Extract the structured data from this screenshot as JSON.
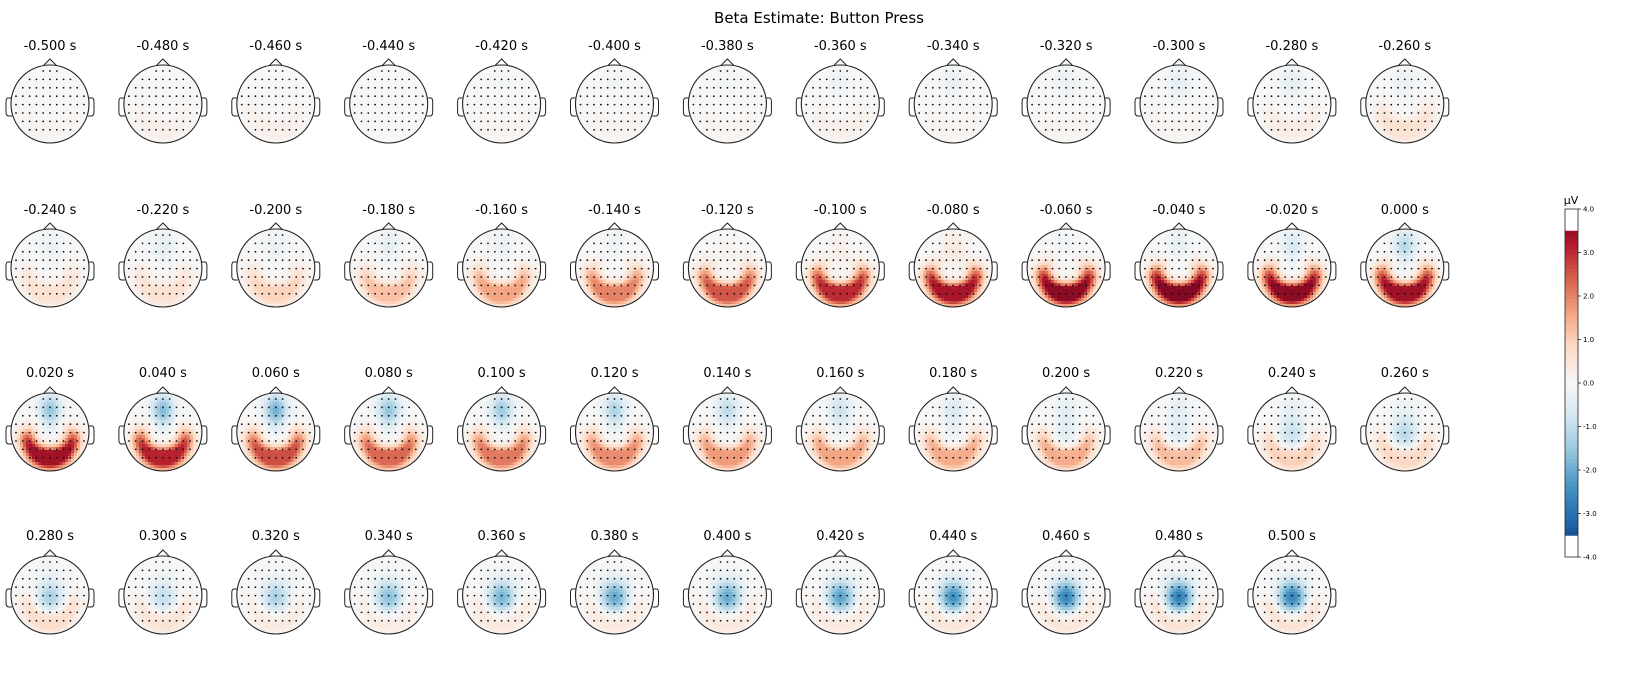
{
  "chart_data": {
    "type": "heatmap",
    "title": "Beta Estimate: Button Press",
    "time_unit": "s",
    "times": [
      "-0.500",
      "-0.480",
      "-0.460",
      "-0.440",
      "-0.420",
      "-0.400",
      "-0.380",
      "-0.360",
      "-0.340",
      "-0.320",
      "-0.300",
      "-0.280",
      "-0.260",
      "-0.240",
      "-0.220",
      "-0.200",
      "-0.180",
      "-0.160",
      "-0.140",
      "-0.120",
      "-0.100",
      "-0.080",
      "-0.060",
      "-0.040",
      "-0.020",
      "0.000",
      "0.020",
      "0.040",
      "0.060",
      "0.080",
      "0.100",
      "0.120",
      "0.140",
      "0.160",
      "0.180",
      "0.200",
      "0.220",
      "0.240",
      "0.260",
      "0.280",
      "0.300",
      "0.320",
      "0.340",
      "0.360",
      "0.380",
      "0.400",
      "0.420",
      "0.440",
      "0.460",
      "0.480",
      "0.500"
    ],
    "posterior_peak_uV": [
      0.1,
      0.2,
      0.2,
      0.0,
      0.1,
      0.1,
      0.1,
      0.2,
      0.1,
      0.1,
      0.1,
      0.3,
      0.6,
      0.6,
      0.6,
      0.9,
      1.2,
      1.6,
      2.0,
      2.5,
      3.0,
      3.3,
      3.6,
      3.7,
      3.6,
      3.4,
      3.4,
      3.1,
      2.6,
      2.3,
      2.1,
      1.9,
      1.7,
      1.6,
      1.5,
      1.5,
      1.3,
      1.0,
      0.9,
      0.8,
      0.6,
      0.4,
      0.4,
      0.5,
      0.5,
      0.5,
      0.5,
      0.6,
      0.6,
      0.7,
      0.7
    ],
    "frontal_peak_uV": [
      0.0,
      0.0,
      0.0,
      0.0,
      -0.1,
      -0.1,
      -0.1,
      -0.2,
      -0.3,
      -0.3,
      -0.4,
      -0.4,
      -0.3,
      -0.3,
      -0.4,
      -0.3,
      -0.4,
      -0.3,
      -0.2,
      0.1,
      0.2,
      0.4,
      -0.2,
      -0.4,
      -0.7,
      -1.2,
      -1.6,
      -1.8,
      -2.0,
      -1.6,
      -1.5,
      -1.3,
      -1.1,
      -0.9,
      -0.6,
      -0.4,
      -0.4,
      -0.3,
      -0.2,
      -0.1,
      0.0,
      0.0,
      0.0,
      0.0,
      0.0,
      0.0,
      0.0,
      0.0,
      0.0,
      0.0,
      0.0
    ],
    "central_peak_uV": [
      0.0,
      0.0,
      0.0,
      0.0,
      0.0,
      0.0,
      0.0,
      0.0,
      0.0,
      0.0,
      0.0,
      0.0,
      0.0,
      0.0,
      0.0,
      0.0,
      0.0,
      0.0,
      0.0,
      0.0,
      0.0,
      0.0,
      0.0,
      0.0,
      0.0,
      0.0,
      0.0,
      0.0,
      0.0,
      0.0,
      0.0,
      0.0,
      0.0,
      -0.1,
      -0.2,
      -0.4,
      -0.5,
      -0.9,
      -1.1,
      -1.3,
      -1.0,
      -1.3,
      -1.7,
      -1.9,
      -2.1,
      -2.1,
      -2.2,
      -2.5,
      -2.7,
      -2.8,
      -2.7
    ],
    "colorbar": {
      "label": "µV",
      "ticks": [
        "4.0",
        "3.0",
        "2.0",
        "1.0",
        "0.0",
        "-1.0",
        "-2.0",
        "-3.0",
        "-4.0"
      ],
      "range": [
        -4.0,
        4.0
      ],
      "colormap": "RdBu_r"
    }
  }
}
